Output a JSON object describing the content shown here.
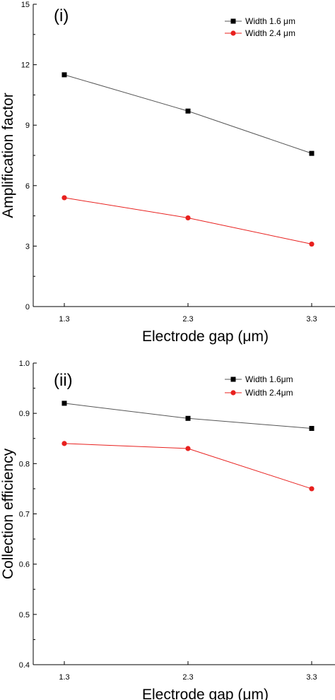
{
  "chart_data": [
    {
      "type": "line",
      "panel_label": "(i)",
      "xlabel": "Electrode gap (μm)",
      "ylabel": "Amplification factor",
      "categories": [
        "1.3",
        "2.3",
        "3.3"
      ],
      "ylim": [
        0,
        15
      ],
      "yticks": [
        "0",
        "3",
        "6",
        "9",
        "12",
        "15"
      ],
      "legend_position": "top-right",
      "grid": false,
      "series": [
        {
          "name": "Width 1.6 μm",
          "values": [
            11.5,
            9.7,
            7.6
          ],
          "color": "#000000",
          "line_color": "#555555",
          "marker": "square"
        },
        {
          "name": "Width 2.4 μm",
          "values": [
            5.4,
            4.4,
            3.1
          ],
          "color": "#e8201e",
          "line_color": "#e8201e",
          "marker": "circle"
        }
      ]
    },
    {
      "type": "line",
      "panel_label": "(ii)",
      "xlabel": "Electrode gap (μm)",
      "ylabel": "Collection efficiency",
      "categories": [
        "1.3",
        "2.3",
        "3.3"
      ],
      "ylim": [
        0.4,
        1.0
      ],
      "yticks": [
        "0.4",
        "0.5",
        "0.6",
        "0.7",
        "0.8",
        "0.9",
        "1.0"
      ],
      "legend_position": "top-right",
      "grid": false,
      "series": [
        {
          "name": "Width 1.6μm",
          "values": [
            0.92,
            0.89,
            0.87
          ],
          "color": "#000000",
          "line_color": "#555555",
          "marker": "square"
        },
        {
          "name": "Width 2.4μm",
          "values": [
            0.84,
            0.83,
            0.75
          ],
          "color": "#e8201e",
          "line_color": "#e8201e",
          "marker": "circle"
        }
      ]
    }
  ]
}
